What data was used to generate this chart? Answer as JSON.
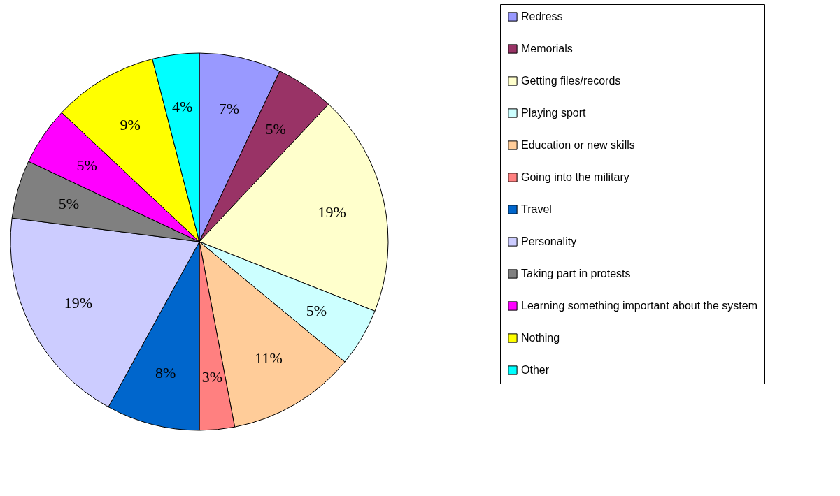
{
  "chart_data": {
    "type": "pie",
    "categories": [
      "Redress",
      "Memorials",
      "Getting files/records",
      "Playing sport",
      "Education or new skills",
      "Going into the military",
      "Travel",
      "Personality",
      "Taking part in protests",
      "Learning something important about the system",
      "Nothing",
      "Other"
    ],
    "values": [
      7,
      5,
      19,
      5,
      11,
      3,
      8,
      19,
      5,
      5,
      9,
      4
    ],
    "value_labels": [
      "7%",
      "5%",
      "19%",
      "5%",
      "11%",
      "3%",
      "8%",
      "19%",
      "5%",
      "5%",
      "9%",
      "4%"
    ],
    "colors": [
      "#9999ff",
      "#993366",
      "#ffffcc",
      "#ccffff",
      "#ffcc99",
      "#ff8080",
      "#0066cc",
      "#ccccff",
      "#808080",
      "#ff00ff",
      "#ffff00",
      "#00ffff"
    ],
    "legend": "right"
  }
}
